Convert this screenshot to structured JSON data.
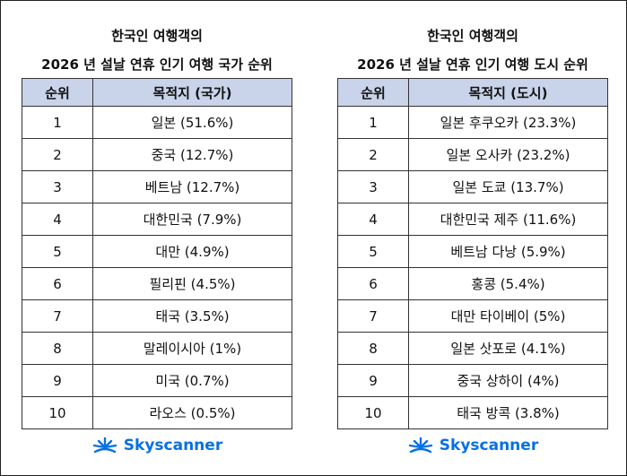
{
  "panels": [
    {
      "title": [
        "한국인 여행객의",
        "2026 년 설날 연휴 인기 여행 국가 순위"
      ],
      "header": [
        "순위",
        "목적지 (국가)"
      ],
      "rows": [
        [
          1,
          "일본 (51.6%)"
        ],
        [
          2,
          "중국 (12.7%)"
        ],
        [
          3,
          "베트남 (12.7%)"
        ],
        [
          4,
          "대한민국 (7.9%)"
        ],
        [
          5,
          "대만 (4.9%)"
        ],
        [
          6,
          "필리핀 (4.5%)"
        ],
        [
          7,
          "태국 (3.5%)"
        ],
        [
          8,
          "말레이시아 (1%)"
        ],
        [
          9,
          "미국 (0.7%)"
        ],
        [
          10,
          "라오스 (0.5%)"
        ]
      ],
      "logo": "Skyscanner"
    },
    {
      "title": [
        "한국인 여행객의",
        "2026 년 설날 연휴 인기 여행 도시 순위"
      ],
      "header": [
        "순위",
        "목적지 (도시)"
      ],
      "rows": [
        [
          1,
          "일본 후쿠오카 (23.3%)"
        ],
        [
          2,
          "일본 오사카 (23.2%)"
        ],
        [
          3,
          "일본 도쿄 (13.7%)"
        ],
        [
          4,
          "대한민국 제주 (11.6%)"
        ],
        [
          5,
          "베트남 다낭 (5.9%)"
        ],
        [
          6,
          "홍콩 (5.4%)"
        ],
        [
          7,
          "대만 타이베이 (5%)"
        ],
        [
          8,
          "일본 삿포로 (4.1%)"
        ],
        [
          9,
          "중국 상하이 (4%)"
        ],
        [
          10,
          "태국 방콕 (3.8%)"
        ]
      ],
      "logo": "Skyscanner"
    }
  ]
}
